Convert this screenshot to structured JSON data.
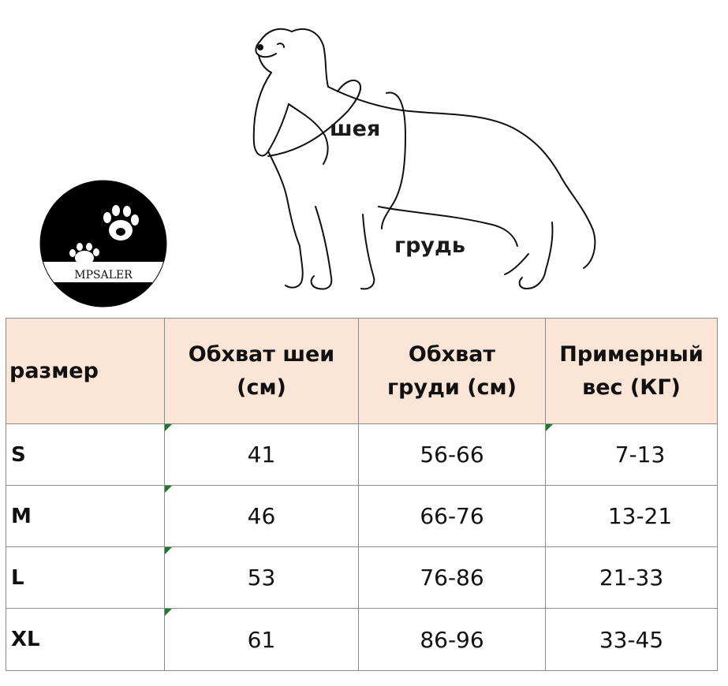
{
  "brand": {
    "logo_text": "MPSALER"
  },
  "diagram": {
    "neck_label": "шея",
    "chest_label": "грудь"
  },
  "table": {
    "headers": [
      "размер",
      "Обхват шеи (см)",
      "Обхват груди (см)",
      "Примерный вес (КГ)"
    ],
    "rows": [
      {
        "size": "S",
        "neck": "41",
        "chest": "56-66",
        "weight": "7-13"
      },
      {
        "size": "M",
        "neck": "46",
        "chest": "66-76",
        "weight": "13-21"
      },
      {
        "size": "L",
        "neck": "53",
        "chest": "76-86",
        "weight": "21-33"
      },
      {
        "size": "XL",
        "neck": "61",
        "chest": "86-96",
        "weight": "33-45"
      }
    ]
  },
  "colors": {
    "header_bg": "#fbe5d6",
    "marker": "#1f7a2c",
    "logo": "#000000"
  }
}
